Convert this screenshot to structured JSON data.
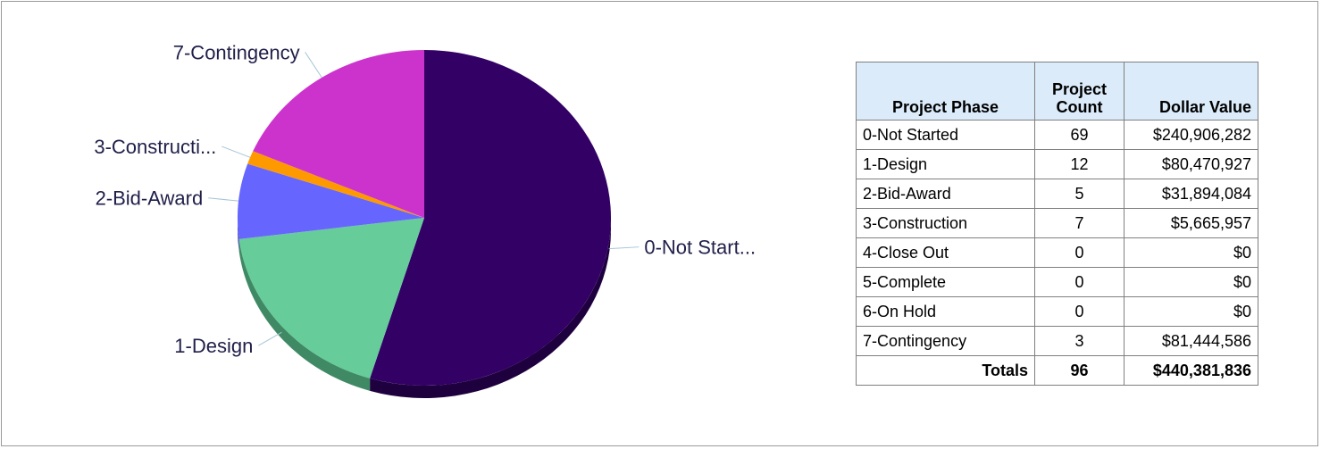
{
  "chart_data": {
    "type": "pie",
    "slices": [
      {
        "label": "0-Not Start...",
        "value": 240906282,
        "color": "#330066",
        "side": "#1f003f"
      },
      {
        "label": "1-Design",
        "value": 80470927,
        "color": "#66cc99",
        "side": "#3f8a64"
      },
      {
        "label": "2-Bid-Award",
        "value": 31894084,
        "color": "#6666ff",
        "side": "#4747b3"
      },
      {
        "label": "3-Constructi...",
        "value": 5665957,
        "color": "#ff9900",
        "side": "#b36b00"
      },
      {
        "label": "7-Contingency",
        "value": 81444586,
        "color": "#cc33cc",
        "side": "#8f248f"
      }
    ]
  },
  "table": {
    "headers": [
      "Project Phase",
      "Project Count",
      "Dollar Value"
    ],
    "rows": [
      [
        "0-Not Started",
        "69",
        "$240,906,282"
      ],
      [
        "1-Design",
        "12",
        "$80,470,927"
      ],
      [
        "2-Bid-Award",
        "5",
        "$31,894,084"
      ],
      [
        "3-Construction",
        "7",
        "$5,665,957"
      ],
      [
        "4-Close Out",
        "0",
        "$0"
      ],
      [
        "5-Complete",
        "0",
        "$0"
      ],
      [
        "6-On Hold",
        "0",
        "$0"
      ],
      [
        "7-Contingency",
        "3",
        "$81,444,586"
      ]
    ],
    "totals": [
      "Totals",
      "96",
      "$440,381,836"
    ]
  }
}
